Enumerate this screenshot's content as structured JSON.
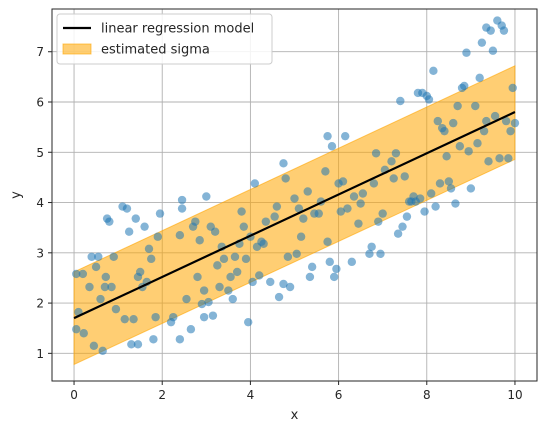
{
  "chart_data": {
    "type": "scatter",
    "title": "",
    "xlabel": "x",
    "ylabel": "y",
    "xlim": [
      -0.5,
      10.5
    ],
    "ylim": [
      0.45,
      7.85
    ],
    "xticks": [
      0,
      2,
      4,
      6,
      8,
      10
    ],
    "yticks": [
      1,
      2,
      3,
      4,
      5,
      6,
      7
    ],
    "grid": true,
    "legend_position": "top-left",
    "colors": {
      "points": "#1f77b4",
      "regression": "#000000",
      "band_fill": "#ffa500",
      "band_edge": "#ffa500",
      "grid": "#b0b0b0"
    },
    "legend": [
      {
        "label": "linear regression model",
        "kind": "line"
      },
      {
        "label": "estimated sigma",
        "kind": "patch"
      }
    ],
    "regression": {
      "x": [
        0,
        10
      ],
      "y": [
        1.7,
        5.8
      ]
    },
    "band": {
      "x": [
        0,
        10
      ],
      "lower": [
        0.78,
        4.86
      ],
      "upper": [
        2.62,
        6.72
      ]
    },
    "points": [
      [
        0.05,
        1.48
      ],
      [
        0.05,
        2.58
      ],
      [
        0.1,
        1.82
      ],
      [
        0.2,
        2.58
      ],
      [
        0.22,
        1.4
      ],
      [
        0.35,
        2.32
      ],
      [
        0.4,
        2.92
      ],
      [
        0.45,
        1.15
      ],
      [
        0.5,
        2.72
      ],
      [
        0.55,
        2.92
      ],
      [
        0.6,
        2.08
      ],
      [
        0.65,
        1.05
      ],
      [
        0.7,
        2.32
      ],
      [
        0.72,
        2.52
      ],
      [
        0.75,
        3.68
      ],
      [
        0.8,
        3.62
      ],
      [
        0.85,
        2.32
      ],
      [
        0.9,
        2.92
      ],
      [
        0.95,
        1.88
      ],
      [
        1.1,
        3.92
      ],
      [
        1.15,
        1.68
      ],
      [
        1.2,
        3.88
      ],
      [
        1.25,
        3.42
      ],
      [
        1.3,
        1.18
      ],
      [
        1.35,
        1.68
      ],
      [
        1.4,
        3.68
      ],
      [
        1.45,
        1.18
      ],
      [
        1.45,
        2.52
      ],
      [
        1.5,
        2.62
      ],
      [
        1.55,
        2.32
      ],
      [
        1.6,
        3.52
      ],
      [
        1.65,
        2.42
      ],
      [
        1.7,
        3.08
      ],
      [
        1.75,
        2.88
      ],
      [
        1.8,
        1.28
      ],
      [
        1.85,
        1.72
      ],
      [
        1.9,
        3.32
      ],
      [
        1.95,
        3.78
      ],
      [
        2.2,
        1.62
      ],
      [
        2.25,
        1.72
      ],
      [
        2.4,
        1.28
      ],
      [
        2.4,
        3.35
      ],
      [
        2.45,
        3.88
      ],
      [
        2.45,
        4.05
      ],
      [
        2.55,
        2.08
      ],
      [
        2.65,
        1.48
      ],
      [
        2.7,
        3.52
      ],
      [
        2.75,
        3.62
      ],
      [
        2.8,
        2.52
      ],
      [
        2.85,
        3.25
      ],
      [
        2.9,
        1.98
      ],
      [
        2.95,
        1.72
      ],
      [
        2.95,
        2.25
      ],
      [
        3.0,
        4.12
      ],
      [
        3.05,
        2.02
      ],
      [
        3.1,
        3.52
      ],
      [
        3.15,
        1.75
      ],
      [
        3.2,
        3.42
      ],
      [
        3.25,
        2.75
      ],
      [
        3.3,
        2.32
      ],
      [
        3.35,
        3.12
      ],
      [
        3.4,
        2.88
      ],
      [
        3.5,
        2.25
      ],
      [
        3.55,
        2.52
      ],
      [
        3.6,
        2.08
      ],
      [
        3.65,
        2.92
      ],
      [
        3.7,
        2.62
      ],
      [
        3.75,
        3.18
      ],
      [
        3.8,
        3.82
      ],
      [
        3.85,
        3.52
      ],
      [
        3.9,
        2.88
      ],
      [
        3.95,
        1.62
      ],
      [
        4.0,
        3.32
      ],
      [
        4.05,
        2.42
      ],
      [
        4.1,
        4.38
      ],
      [
        4.15,
        3.12
      ],
      [
        4.2,
        2.55
      ],
      [
        4.25,
        3.22
      ],
      [
        4.3,
        3.18
      ],
      [
        4.35,
        3.62
      ],
      [
        4.45,
        2.42
      ],
      [
        4.55,
        3.72
      ],
      [
        4.6,
        3.92
      ],
      [
        4.65,
        2.12
      ],
      [
        4.75,
        4.78
      ],
      [
        4.75,
        2.38
      ],
      [
        4.8,
        4.48
      ],
      [
        4.85,
        2.92
      ],
      [
        4.9,
        2.32
      ],
      [
        5.0,
        4.08
      ],
      [
        5.05,
        2.98
      ],
      [
        5.1,
        3.88
      ],
      [
        5.15,
        3.32
      ],
      [
        5.2,
        3.68
      ],
      [
        5.3,
        4.22
      ],
      [
        5.35,
        2.52
      ],
      [
        5.4,
        2.72
      ],
      [
        5.45,
        3.78
      ],
      [
        5.55,
        3.78
      ],
      [
        5.6,
        4.02
      ],
      [
        5.7,
        4.62
      ],
      [
        5.75,
        5.32
      ],
      [
        5.75,
        3.22
      ],
      [
        5.8,
        2.82
      ],
      [
        5.85,
        5.12
      ],
      [
        5.9,
        2.52
      ],
      [
        5.95,
        2.68
      ],
      [
        6.0,
        4.38
      ],
      [
        6.05,
        3.82
      ],
      [
        6.1,
        4.42
      ],
      [
        6.15,
        5.32
      ],
      [
        6.2,
        3.88
      ],
      [
        6.3,
        2.82
      ],
      [
        6.35,
        4.12
      ],
      [
        6.45,
        3.58
      ],
      [
        6.5,
        3.98
      ],
      [
        6.55,
        4.18
      ],
      [
        6.7,
        2.98
      ],
      [
        6.75,
        3.12
      ],
      [
        6.8,
        4.38
      ],
      [
        6.85,
        4.98
      ],
      [
        6.9,
        3.62
      ],
      [
        6.95,
        2.98
      ],
      [
        7.0,
        3.78
      ],
      [
        7.05,
        4.65
      ],
      [
        7.2,
        4.82
      ],
      [
        7.25,
        4.48
      ],
      [
        7.3,
        4.98
      ],
      [
        7.35,
        3.38
      ],
      [
        7.4,
        6.02
      ],
      [
        7.45,
        3.52
      ],
      [
        7.5,
        4.52
      ],
      [
        7.55,
        3.72
      ],
      [
        7.6,
        4.02
      ],
      [
        7.65,
        4.02
      ],
      [
        7.7,
        4.12
      ],
      [
        7.75,
        4.02
      ],
      [
        7.8,
        6.18
      ],
      [
        7.85,
        4.08
      ],
      [
        7.9,
        6.18
      ],
      [
        7.95,
        3.82
      ],
      [
        8.0,
        6.12
      ],
      [
        8.05,
        6.05
      ],
      [
        8.1,
        4.18
      ],
      [
        8.15,
        6.62
      ],
      [
        8.2,
        3.92
      ],
      [
        8.25,
        5.62
      ],
      [
        8.3,
        4.38
      ],
      [
        8.35,
        5.48
      ],
      [
        8.4,
        5.42
      ],
      [
        8.45,
        4.92
      ],
      [
        8.5,
        4.42
      ],
      [
        8.55,
        4.28
      ],
      [
        8.6,
        5.58
      ],
      [
        8.65,
        3.98
      ],
      [
        8.7,
        5.92
      ],
      [
        8.75,
        5.12
      ],
      [
        8.8,
        6.28
      ],
      [
        8.85,
        6.32
      ],
      [
        8.9,
        6.98
      ],
      [
        8.95,
        5.02
      ],
      [
        9.0,
        4.28
      ],
      [
        9.1,
        5.92
      ],
      [
        9.15,
        5.18
      ],
      [
        9.2,
        6.48
      ],
      [
        9.25,
        7.18
      ],
      [
        9.3,
        5.42
      ],
      [
        9.35,
        5.62
      ],
      [
        9.35,
        7.48
      ],
      [
        9.4,
        4.82
      ],
      [
        9.45,
        7.42
      ],
      [
        9.5,
        7.02
      ],
      [
        9.55,
        5.72
      ],
      [
        9.6,
        7.62
      ],
      [
        9.65,
        4.88
      ],
      [
        9.7,
        7.52
      ],
      [
        9.75,
        7.42
      ],
      [
        9.8,
        5.62
      ],
      [
        9.85,
        4.88
      ],
      [
        9.9,
        5.42
      ],
      [
        9.95,
        6.28
      ],
      [
        10.0,
        5.58
      ]
    ]
  }
}
